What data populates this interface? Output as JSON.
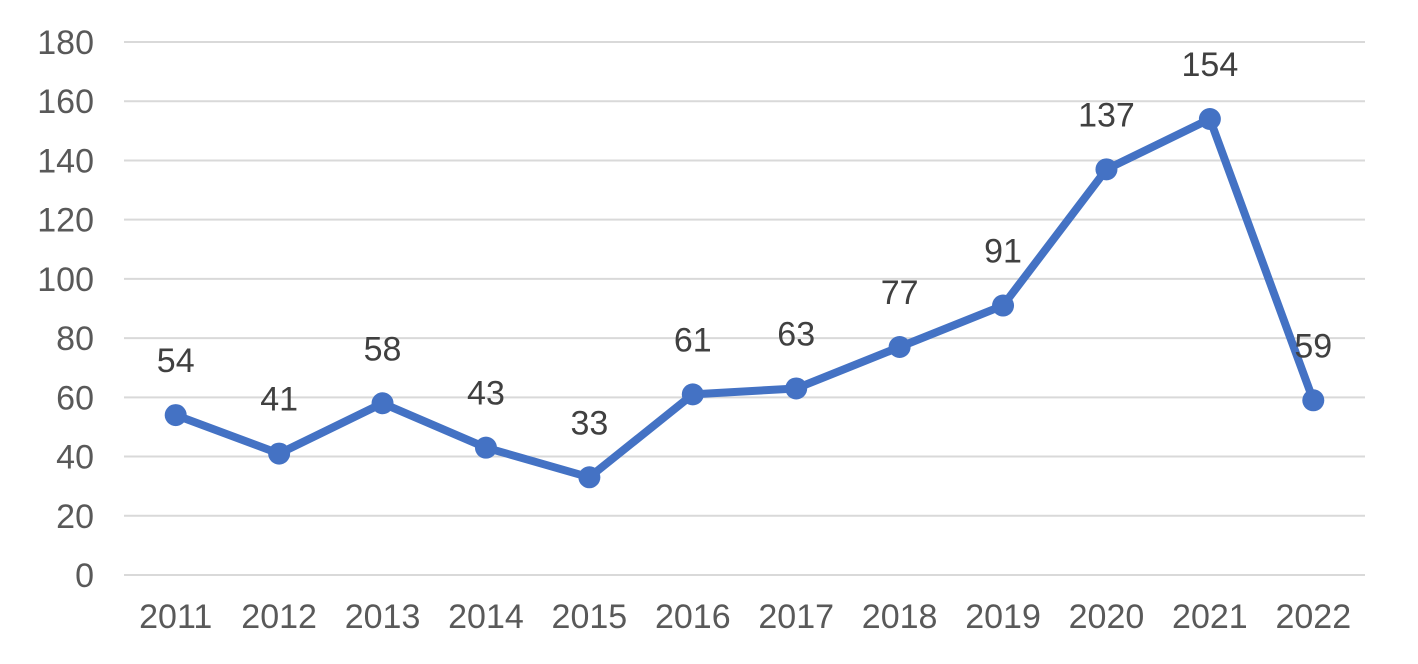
{
  "chart_data": {
    "type": "line",
    "title": "",
    "xlabel": "",
    "ylabel": "",
    "categories": [
      "2011",
      "2012",
      "2013",
      "2014",
      "2015",
      "2016",
      "2017",
      "2018",
      "2019",
      "2020",
      "2021",
      "2022"
    ],
    "series": [
      {
        "values": [
          54,
          41,
          58,
          43,
          33,
          61,
          63,
          77,
          91,
          137,
          154,
          59
        ],
        "color": "#4472C4",
        "marker": "circle",
        "data_labels": true
      }
    ],
    "ylim": [
      0,
      180
    ],
    "yticks": [
      0,
      20,
      40,
      60,
      80,
      100,
      120,
      140,
      160,
      180
    ],
    "grid": true,
    "legend": "none"
  }
}
